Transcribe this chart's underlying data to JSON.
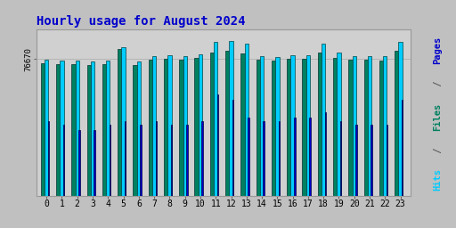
{
  "title": "Hourly usage for August 2024",
  "hours": [
    0,
    1,
    2,
    3,
    4,
    5,
    6,
    7,
    8,
    9,
    10,
    11,
    12,
    13,
    14,
    15,
    16,
    17,
    18,
    19,
    20,
    21,
    22,
    23
  ],
  "hits": [
    76000,
    75500,
    75500,
    75200,
    75500,
    83000,
    75000,
    78000,
    78500,
    78200,
    79000,
    86000,
    86500,
    85000,
    78000,
    77500,
    78500,
    78500,
    85000,
    80000,
    78000,
    78000,
    78000,
    86000
  ],
  "files": [
    74000,
    73500,
    73500,
    73000,
    73500,
    82000,
    73000,
    76000,
    76500,
    76000,
    77000,
    80000,
    81000,
    79500,
    76000,
    75500,
    76500,
    76500,
    80000,
    77000,
    76000,
    76000,
    75500,
    81000
  ],
  "pages": [
    42000,
    40000,
    37000,
    37000,
    40000,
    42000,
    40000,
    42000,
    40000,
    40000,
    42000,
    57000,
    54000,
    44000,
    42000,
    42000,
    44000,
    44000,
    47000,
    42000,
    40000,
    40000,
    40000,
    54000
  ],
  "hits_color": "#00ccff",
  "files_color": "#008060",
  "pages_color": "#0000cc",
  "bg_color": "#c0c0c0",
  "plot_bg_color": "#d0d0d0",
  "title_color": "#0000cc",
  "pages_label_color": "#0000cc",
  "files_label_color": "#008060",
  "hits_label_color": "#00ccff",
  "ytick_val": 76670,
  "ylim_min": 0,
  "ylim_max": 93000,
  "bar_width": 0.25
}
